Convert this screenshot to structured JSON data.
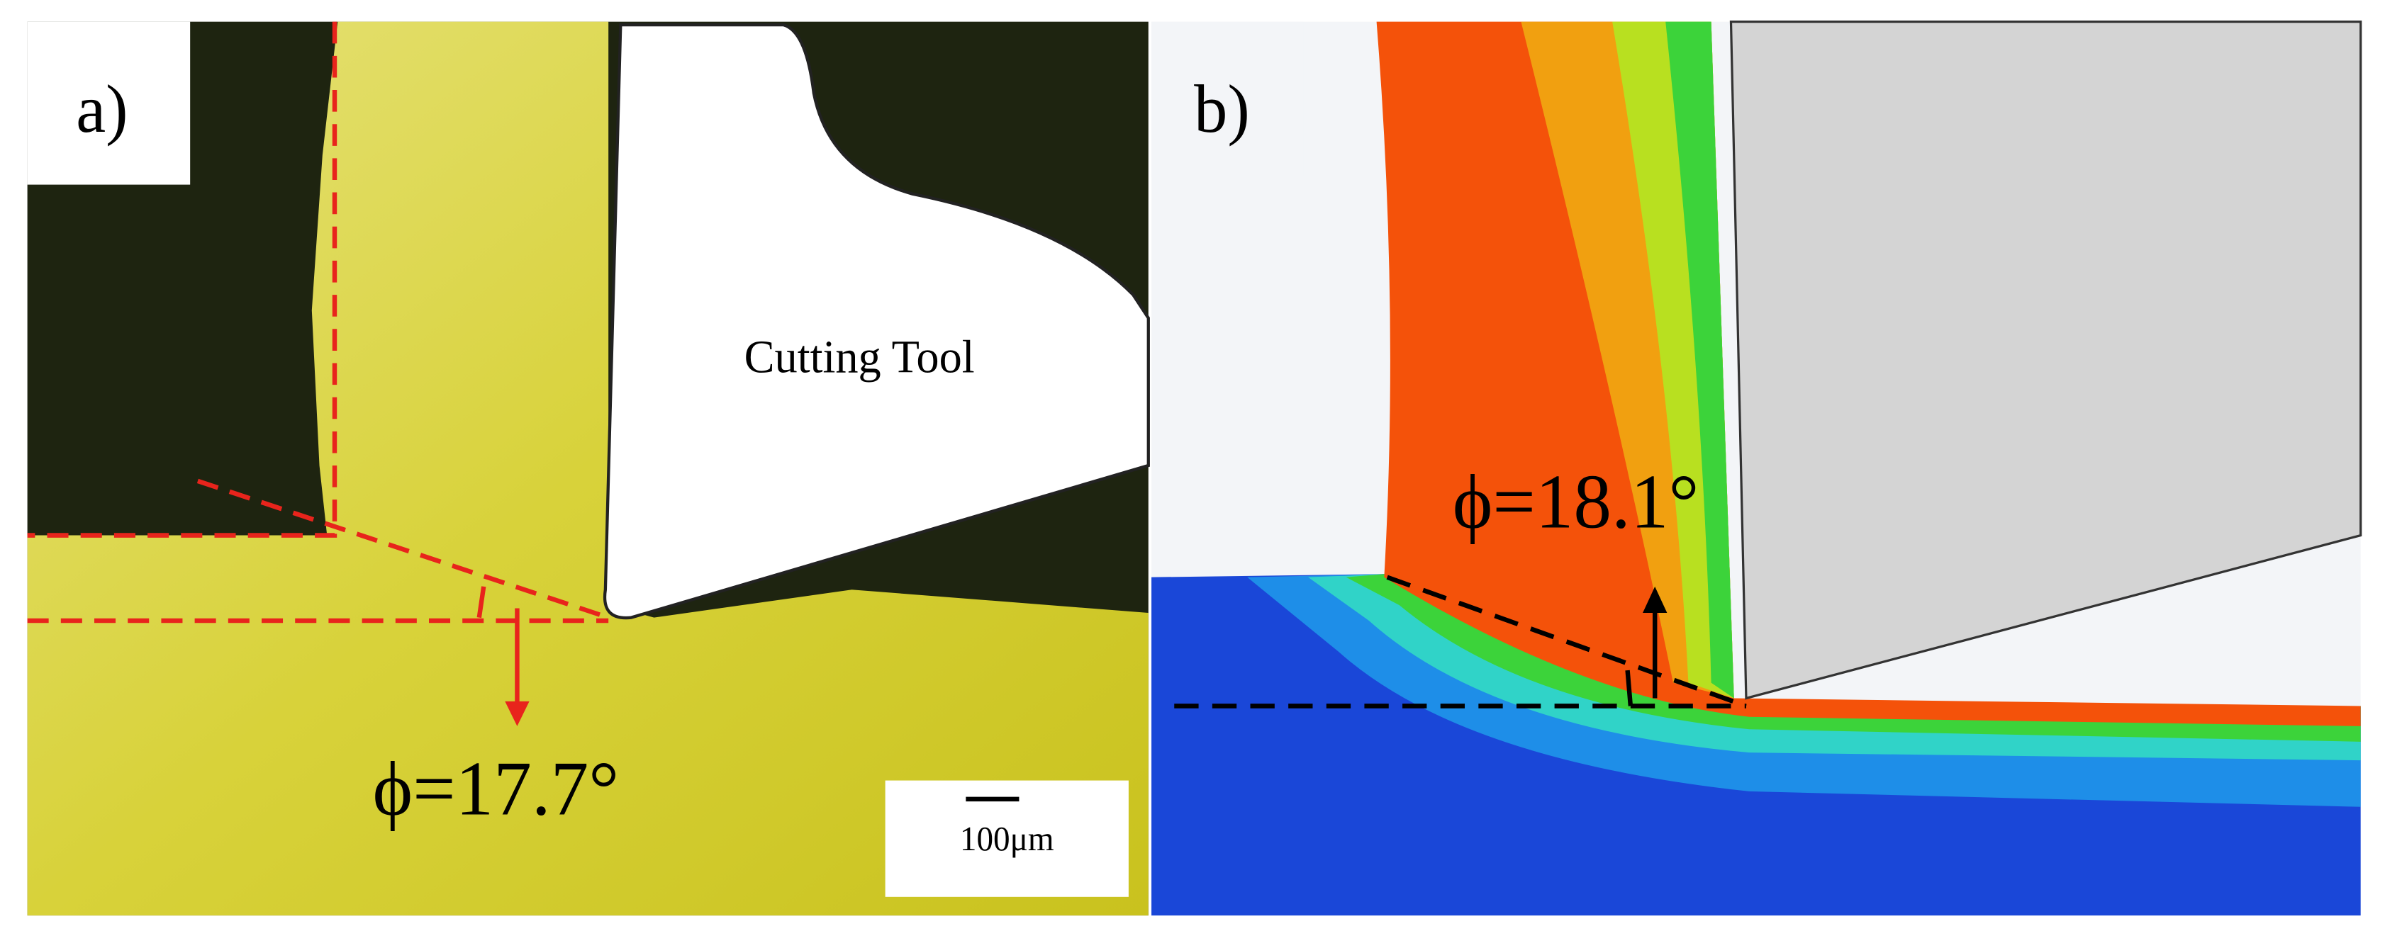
{
  "panels": [
    {
      "label": "a)",
      "tool_label": "Cutting Tool",
      "angle_label": "ϕ=17.7°",
      "scale_bar": "100μm"
    },
    {
      "label": "b)",
      "angle_label": "ϕ=18.1°"
    }
  ]
}
